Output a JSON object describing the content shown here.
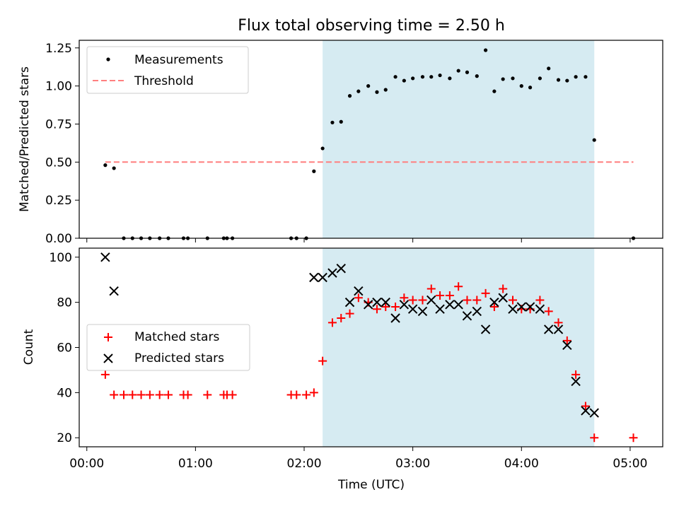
{
  "chart_data": [
    {
      "type": "scatter",
      "title": "Flux total observing time = 2.50 h",
      "xlabel": "",
      "ylabel": "Matched/Predicted stars",
      "xlim": [
        -0.07,
        5.3
      ],
      "ylim": [
        0,
        1.3
      ],
      "yticks": [
        0,
        0.25,
        0.5,
        0.75,
        1.0,
        1.25
      ],
      "ytick_labels": [
        "0.00",
        "0.25",
        "0.50",
        "0.75",
        "1.00",
        "1.25"
      ],
      "xticks": [
        0,
        1,
        2,
        3,
        4,
        5
      ],
      "shaded_span": [
        2.17,
        4.67
      ],
      "shaded_color": "#add8e6",
      "legend_position": "upper left",
      "legend": [
        "Measurements",
        "Threshold"
      ],
      "threshold": {
        "value": 0.5,
        "x_range": [
          0.17,
          5.03
        ],
        "color": "#ff7f7f"
      },
      "series": [
        {
          "name": "Measurements",
          "color": "#000000",
          "x": [
            0.17,
            0.25,
            0.34,
            0.42,
            0.5,
            0.58,
            0.67,
            0.75,
            0.89,
            0.93,
            1.11,
            1.26,
            1.29,
            1.34,
            1.88,
            1.93,
            2.02,
            2.09,
            2.17,
            2.26,
            2.34,
            2.42,
            2.5,
            2.59,
            2.67,
            2.75,
            2.84,
            2.92,
            3.0,
            3.09,
            3.17,
            3.25,
            3.34,
            3.42,
            3.5,
            3.59,
            3.67,
            3.75,
            3.83,
            3.92,
            4.0,
            4.08,
            4.17,
            4.25,
            4.34,
            4.42,
            4.5,
            4.59,
            4.67,
            5.03
          ],
          "y": [
            0.48,
            0.46,
            0,
            0,
            0,
            0,
            0,
            0,
            0,
            0,
            0,
            0,
            0,
            0,
            0,
            0,
            0,
            0.44,
            0.59,
            0.76,
            0.765,
            0.935,
            0.965,
            1.0,
            0.96,
            0.975,
            1.06,
            1.035,
            1.05,
            1.06,
            1.06,
            1.07,
            1.05,
            1.1,
            1.09,
            1.065,
            1.235,
            0.965,
            1.045,
            1.05,
            1.0,
            0.99,
            1.05,
            1.115,
            1.04,
            1.035,
            1.06,
            1.06,
            0.645,
            0
          ]
        }
      ]
    },
    {
      "type": "scatter",
      "title": "",
      "xlabel": "Time (UTC)",
      "ylabel": "Count",
      "xlim": [
        -0.07,
        5.3
      ],
      "ylim": [
        16,
        104
      ],
      "yticks": [
        20,
        40,
        60,
        80,
        100
      ],
      "ytick_labels": [
        "20",
        "40",
        "60",
        "80",
        "100"
      ],
      "xticks": [
        0,
        1,
        2,
        3,
        4,
        5
      ],
      "xtick_labels": [
        "00:00",
        "01:00",
        "02:00",
        "03:00",
        "04:00",
        "05:00"
      ],
      "shaded_span": [
        2.17,
        4.67
      ],
      "shaded_color": "#add8e6",
      "legend_position": "center left",
      "legend": [
        "Matched stars",
        "Predicted stars"
      ],
      "series": [
        {
          "name": "Matched stars",
          "marker": "+",
          "color": "#ff0000",
          "x": [
            0.17,
            0.25,
            0.34,
            0.42,
            0.5,
            0.58,
            0.67,
            0.75,
            0.89,
            0.93,
            1.11,
            1.26,
            1.29,
            1.34,
            1.88,
            1.93,
            2.02,
            2.09,
            2.17,
            2.26,
            2.34,
            2.42,
            2.5,
            2.59,
            2.67,
            2.75,
            2.84,
            2.92,
            3.0,
            3.09,
            3.17,
            3.25,
            3.34,
            3.42,
            3.5,
            3.59,
            3.67,
            3.75,
            3.83,
            3.92,
            4.0,
            4.08,
            4.17,
            4.25,
            4.34,
            4.42,
            4.5,
            4.59,
            4.67,
            5.03
          ],
          "y": [
            48,
            39,
            39,
            39,
            39,
            39,
            39,
            39,
            39,
            39,
            39,
            39,
            39,
            39,
            39,
            39,
            39,
            40,
            54,
            71,
            73,
            75,
            82,
            80,
            77,
            78,
            78,
            82,
            81,
            81,
            86,
            83,
            83,
            87,
            81,
            81,
            84,
            78,
            86,
            81,
            77,
            77,
            81,
            76,
            71,
            63,
            48,
            34,
            20,
            20
          ]
        },
        {
          "name": "Predicted stars",
          "marker": "x",
          "color": "#000000",
          "x": [
            0.17,
            0.25,
            2.09,
            2.17,
            2.26,
            2.34,
            2.42,
            2.5,
            2.59,
            2.67,
            2.75,
            2.84,
            2.92,
            3.0,
            3.09,
            3.17,
            3.25,
            3.34,
            3.42,
            3.5,
            3.59,
            3.67,
            3.75,
            3.83,
            3.92,
            4.0,
            4.08,
            4.17,
            4.25,
            4.34,
            4.42,
            4.5,
            4.59,
            4.67
          ],
          "y": [
            100,
            85,
            91,
            91,
            93,
            95,
            80,
            85,
            79,
            80,
            80,
            73,
            79,
            77,
            76,
            81,
            77,
            79,
            79,
            74,
            76,
            68,
            80,
            82,
            77,
            78,
            78,
            77,
            68,
            68,
            61,
            45,
            32,
            31
          ]
        }
      ]
    }
  ]
}
